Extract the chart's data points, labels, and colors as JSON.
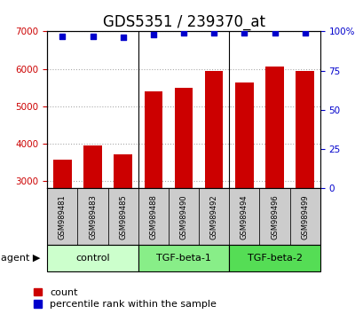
{
  "title": "GDS5351 / 239370_at",
  "samples": [
    "GSM989481",
    "GSM989483",
    "GSM989485",
    "GSM989488",
    "GSM989490",
    "GSM989492",
    "GSM989494",
    "GSM989496",
    "GSM989499"
  ],
  "counts": [
    3580,
    3940,
    3700,
    5400,
    5490,
    5940,
    5640,
    6050,
    5940
  ],
  "percentiles": [
    97,
    97,
    96,
    98,
    99,
    99,
    99,
    99,
    99
  ],
  "groups": [
    {
      "label": "control",
      "start": 0,
      "end": 3,
      "color": "#ccffcc"
    },
    {
      "label": "TGF-beta-1",
      "start": 3,
      "end": 6,
      "color": "#88ee88"
    },
    {
      "label": "TGF-beta-2",
      "start": 6,
      "end": 9,
      "color": "#55dd55"
    }
  ],
  "ylim_left": [
    2800,
    7000
  ],
  "ylim_right": [
    0,
    100
  ],
  "yticks_left": [
    3000,
    4000,
    5000,
    6000,
    7000
  ],
  "yticks_right": [
    0,
    25,
    50,
    75,
    100
  ],
  "bar_color": "#cc0000",
  "dot_color": "#0000cc",
  "bar_width": 0.6,
  "grid_color": "#aaaaaa",
  "title_fontsize": 12,
  "tick_fontsize": 7.5,
  "label_fontsize": 9,
  "legend_fontsize": 8,
  "sample_box_color": "#cccccc",
  "group_boundaries": [
    2.5,
    5.5
  ]
}
